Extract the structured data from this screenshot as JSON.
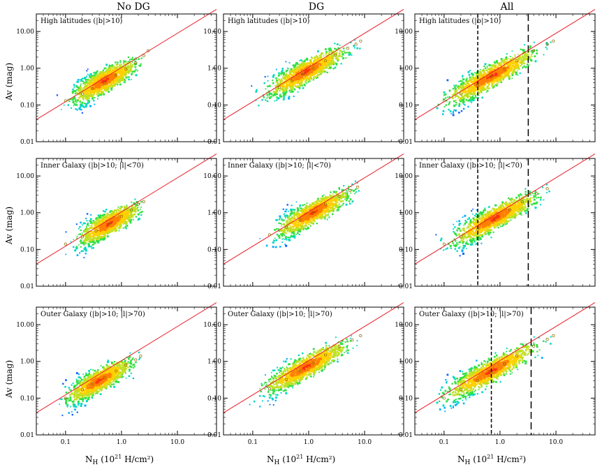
{
  "figure": {
    "columns": [
      "No DG",
      "DG",
      "All"
    ],
    "ylabel": "Av (mag)",
    "xlabel_prefix": "N",
    "xlabel_sub": "H",
    "xlabel_suffix": "(10",
    "xlabel_exp": "21",
    "xlabel_end": " H/cm²)",
    "xticks": [
      "0.1",
      "1.0",
      "10.0"
    ],
    "yticks": [
      "0.01",
      "0.10",
      "1.00",
      "10.00"
    ]
  },
  "chart_data": [
    {
      "type": "scatter",
      "row": 0,
      "col": 0,
      "panel_label": "High latitudes (|b|>10)",
      "x_scale": "log",
      "y_scale": "log",
      "xlim": [
        0.03,
        50
      ],
      "ylim": [
        0.01,
        30
      ],
      "cloud": {
        "x_range": [
          0.05,
          2.5
        ],
        "center": [
          0.5,
          0.45
        ]
      },
      "fit_line": {
        "color": "#e8202a",
        "points": [
          [
            0.03,
            0.04
          ],
          [
            50,
            40
          ]
        ]
      },
      "binned_points": [
        [
          0.1,
          0.13
        ],
        [
          0.2,
          0.2
        ],
        [
          0.3,
          0.28
        ],
        [
          0.5,
          0.4
        ],
        [
          0.8,
          0.65
        ],
        [
          1.2,
          0.95
        ],
        [
          1.8,
          1.4
        ],
        [
          2.5,
          2.2
        ],
        [
          3.0,
          3.0
        ]
      ],
      "dashed_lines": []
    },
    {
      "type": "scatter",
      "row": 0,
      "col": 1,
      "panel_label": "High latitudes (|b|>10)",
      "x_scale": "log",
      "y_scale": "log",
      "xlim": [
        0.03,
        50
      ],
      "ylim": [
        0.01,
        30
      ],
      "cloud": {
        "x_range": [
          0.08,
          9
        ],
        "center": [
          0.9,
          0.8
        ]
      },
      "fit_line": {
        "color": "#e8202a",
        "points": [
          [
            0.03,
            0.04
          ],
          [
            50,
            40
          ]
        ]
      },
      "binned_points": [
        [
          0.3,
          0.3
        ],
        [
          0.5,
          0.45
        ],
        [
          0.8,
          0.7
        ],
        [
          1.2,
          1.0
        ],
        [
          2.0,
          1.6
        ],
        [
          3.0,
          2.3
        ],
        [
          5.0,
          3.5
        ],
        [
          7.0,
          4.5
        ],
        [
          8.5,
          5.5
        ]
      ],
      "dashed_lines": []
    },
    {
      "type": "scatter",
      "row": 0,
      "col": 2,
      "panel_label": "High latitudes (|b|>10)",
      "x_scale": "log",
      "y_scale": "log",
      "xlim": [
        0.03,
        50
      ],
      "ylim": [
        0.01,
        30
      ],
      "cloud": {
        "x_range": [
          0.04,
          9
        ],
        "center": [
          0.7,
          0.6
        ]
      },
      "fit_line": {
        "color": "#e8202a",
        "points": [
          [
            0.03,
            0.04
          ],
          [
            50,
            40
          ]
        ]
      },
      "binned_points": [
        [
          0.1,
          0.13
        ],
        [
          0.2,
          0.2
        ],
        [
          0.4,
          0.35
        ],
        [
          0.7,
          0.6
        ],
        [
          1.2,
          0.95
        ],
        [
          2.0,
          1.6
        ],
        [
          4.0,
          3.0
        ],
        [
          7.0,
          4.5
        ],
        [
          9.0,
          5.5
        ]
      ],
      "dashed_lines": [
        0.4,
        3.2
      ]
    },
    {
      "type": "scatter",
      "row": 1,
      "col": 0,
      "panel_label": "Inner Galaxy (|b|>10; |l|<70)",
      "x_scale": "log",
      "y_scale": "log",
      "xlim": [
        0.03,
        50
      ],
      "ylim": [
        0.01,
        30
      ],
      "cloud": {
        "x_range": [
          0.06,
          2.5
        ],
        "center": [
          0.6,
          0.5
        ]
      },
      "fit_line": {
        "color": "#e8202a",
        "points": [
          [
            0.03,
            0.04
          ],
          [
            50,
            40
          ]
        ]
      },
      "binned_points": [
        [
          0.1,
          0.14
        ],
        [
          0.2,
          0.22
        ],
        [
          0.35,
          0.32
        ],
        [
          0.6,
          0.5
        ],
        [
          1.0,
          0.8
        ],
        [
          1.5,
          1.2
        ],
        [
          2.0,
          1.7
        ],
        [
          2.5,
          2.0
        ]
      ],
      "dashed_lines": []
    },
    {
      "type": "scatter",
      "row": 1,
      "col": 1,
      "panel_label": "Inner Galaxy (|b|>10; |l|<70)",
      "x_scale": "log",
      "y_scale": "log",
      "xlim": [
        0.03,
        50
      ],
      "ylim": [
        0.01,
        30
      ],
      "cloud": {
        "x_range": [
          0.1,
          8
        ],
        "center": [
          1.2,
          1.0
        ]
      },
      "fit_line": {
        "color": "#e8202a",
        "points": [
          [
            0.03,
            0.04
          ],
          [
            50,
            40
          ]
        ]
      },
      "binned_points": [
        [
          0.2,
          0.25
        ],
        [
          0.4,
          0.4
        ],
        [
          0.7,
          0.65
        ],
        [
          1.2,
          1.0
        ],
        [
          2.0,
          1.7
        ],
        [
          3.5,
          2.8
        ],
        [
          5.5,
          4.0
        ],
        [
          7.5,
          5.0
        ]
      ],
      "dashed_lines": []
    },
    {
      "type": "scatter",
      "row": 1,
      "col": 2,
      "panel_label": "Inner Galaxy (|b|>10; |l|<70)",
      "x_scale": "log",
      "y_scale": "log",
      "xlim": [
        0.03,
        50
      ],
      "ylim": [
        0.01,
        30
      ],
      "cloud": {
        "x_range": [
          0.05,
          8
        ],
        "center": [
          0.8,
          0.7
        ]
      },
      "fit_line": {
        "color": "#e8202a",
        "points": [
          [
            0.03,
            0.04
          ],
          [
            50,
            40
          ]
        ]
      },
      "binned_points": [
        [
          0.1,
          0.14
        ],
        [
          0.2,
          0.22
        ],
        [
          0.4,
          0.35
        ],
        [
          0.8,
          0.65
        ],
        [
          1.5,
          1.2
        ],
        [
          2.5,
          2.0
        ],
        [
          4.5,
          3.3
        ],
        [
          7.0,
          4.5
        ]
      ],
      "dashed_lines": [
        0.4,
        3.2
      ]
    },
    {
      "type": "scatter",
      "row": 2,
      "col": 0,
      "panel_label": "Outer Galaxy (|b|>10; |l|>70)",
      "x_scale": "log",
      "y_scale": "log",
      "xlim": [
        0.03,
        50
      ],
      "ylim": [
        0.01,
        30
      ],
      "cloud": {
        "x_range": [
          0.05,
          2.3
        ],
        "center": [
          0.4,
          0.3
        ]
      },
      "fit_line": {
        "color": "#e8202a",
        "points": [
          [
            0.03,
            0.04
          ],
          [
            50,
            40
          ]
        ]
      },
      "binned_points": [
        [
          0.1,
          0.1
        ],
        [
          0.2,
          0.17
        ],
        [
          0.3,
          0.24
        ],
        [
          0.5,
          0.36
        ],
        [
          0.8,
          0.55
        ],
        [
          1.2,
          0.8
        ],
        [
          1.8,
          1.1
        ],
        [
          2.2,
          1.4
        ]
      ],
      "dashed_lines": []
    },
    {
      "type": "scatter",
      "row": 2,
      "col": 1,
      "panel_label": "Outer Galaxy (|b|>10; |l|>70)",
      "x_scale": "log",
      "y_scale": "log",
      "xlim": [
        0.03,
        50
      ],
      "ylim": [
        0.01,
        30
      ],
      "cloud": {
        "x_range": [
          0.07,
          9
        ],
        "center": [
          0.9,
          0.7
        ]
      },
      "fit_line": {
        "color": "#e8202a",
        "points": [
          [
            0.03,
            0.04
          ],
          [
            50,
            40
          ]
        ]
      },
      "binned_points": [
        [
          0.2,
          0.18
        ],
        [
          0.4,
          0.32
        ],
        [
          0.7,
          0.55
        ],
        [
          1.2,
          0.9
        ],
        [
          2.0,
          1.5
        ],
        [
          3.5,
          2.5
        ],
        [
          6.0,
          3.8
        ],
        [
          8.5,
          5.0
        ]
      ],
      "dashed_lines": []
    },
    {
      "type": "scatter",
      "row": 2,
      "col": 2,
      "panel_label": "Outer Galaxy (|b|>10; |l|>70)",
      "x_scale": "log",
      "y_scale": "log",
      "xlim": [
        0.03,
        50
      ],
      "ylim": [
        0.01,
        30
      ],
      "cloud": {
        "x_range": [
          0.04,
          9
        ],
        "center": [
          0.7,
          0.55
        ]
      },
      "fit_line": {
        "color": "#e8202a",
        "points": [
          [
            0.03,
            0.04
          ],
          [
            50,
            40
          ]
        ]
      },
      "binned_points": [
        [
          0.1,
          0.1
        ],
        [
          0.2,
          0.17
        ],
        [
          0.4,
          0.3
        ],
        [
          0.7,
          0.5
        ],
        [
          1.2,
          0.85
        ],
        [
          2.0,
          1.4
        ],
        [
          4.0,
          2.6
        ],
        [
          7.0,
          4.0
        ],
        [
          9.0,
          5.0
        ]
      ],
      "dashed_lines": [
        0.7,
        3.6
      ]
    }
  ]
}
